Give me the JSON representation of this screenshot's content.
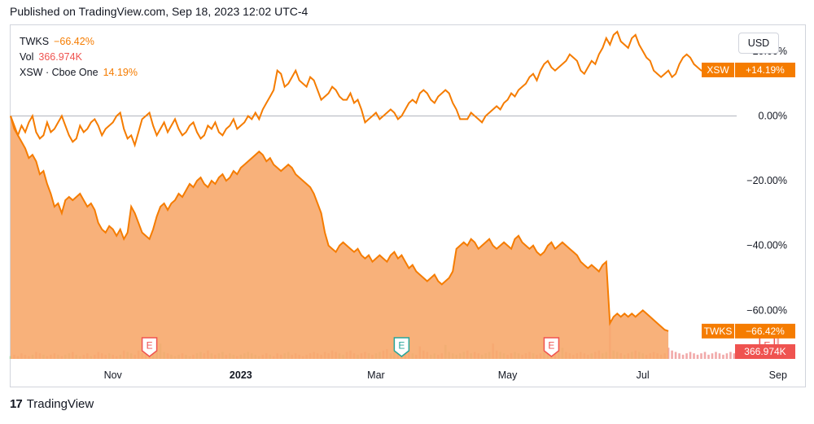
{
  "header": {
    "published": "Published on TradingView.com, Sep 18, 2023 12:02 UTC-4"
  },
  "legend": [
    {
      "symbol": "TWKS",
      "value": "−66.42%",
      "color": "#f57c00"
    },
    {
      "symbol": "Vol",
      "value": "366.974K",
      "color": "#ef5350"
    },
    {
      "symbol": "XSW · Cboe One",
      "value": "14.19%",
      "color": "#f57c00"
    }
  ],
  "currency": "USD",
  "footer": {
    "brand": "TradingView",
    "logo_icon": "tradingview-logo-icon"
  },
  "colors": {
    "line": "#f57c00",
    "area": "#f7a96b",
    "vol_red": "#ef9a9a",
    "vol_green": "#a5d6a7",
    "grid": "#e0e3eb",
    "label_red": "#ef5350"
  },
  "chart_data": {
    "type": "line",
    "yaxis": {
      "unit": "%",
      "ticks": [
        20,
        0,
        -20,
        -40,
        -60
      ],
      "tick_labels": [
        "20.00%",
        "0.00%",
        "−20.00%",
        "−40.00%",
        "−60.00%"
      ],
      "range": [
        -75,
        28
      ]
    },
    "xaxis": {
      "tick_labels": [
        "Nov",
        "2023",
        "Mar",
        "May",
        "Jul",
        "Sep"
      ],
      "tick_index": [
        28,
        63,
        100,
        136,
        173,
        210
      ]
    },
    "series": [
      {
        "name": "XSW",
        "label": "XSW",
        "last_label": "+14.19%",
        "last": 14.19,
        "values": [
          0,
          -4,
          -6,
          -3,
          -5,
          -2,
          0,
          -5,
          -7,
          -6,
          -2,
          -5,
          -4,
          -2,
          0,
          -3,
          -6,
          -8,
          -7,
          -3,
          -5,
          -4,
          -2,
          -1,
          -3,
          -6,
          -4,
          -3,
          -2,
          0,
          1,
          -4,
          -7,
          -6,
          -9,
          -5,
          -1,
          0,
          1,
          -3,
          -6,
          -4,
          -2,
          -5,
          -3,
          -1,
          -4,
          -6,
          -5,
          -3,
          -2,
          -5,
          -7,
          -6,
          -3,
          -4,
          -2,
          -5,
          -6,
          -4,
          -3,
          -1,
          -4,
          -3,
          -2,
          0,
          -1,
          1,
          -1,
          2,
          4,
          6,
          8,
          14,
          13,
          9,
          10,
          12,
          14,
          11,
          10,
          9,
          12,
          11,
          8,
          5,
          6,
          7,
          9,
          8,
          6,
          5,
          5,
          7,
          4,
          5,
          2,
          -2,
          -1,
          0,
          1,
          -1,
          0,
          1,
          2,
          1,
          -1,
          0,
          2,
          4,
          5,
          4,
          7,
          8,
          7,
          5,
          4,
          6,
          7,
          8,
          7,
          4,
          2,
          -1,
          -1,
          -1,
          1,
          0,
          -1,
          -2,
          0,
          1,
          2,
          3,
          2,
          4,
          5,
          7,
          6,
          8,
          9,
          10,
          12,
          13,
          11,
          14,
          16,
          17,
          15,
          14,
          15,
          16,
          17,
          19,
          18,
          17,
          14,
          13,
          15,
          17,
          16,
          19,
          21,
          24,
          22,
          25,
          26,
          23,
          22,
          21,
          24,
          25,
          22,
          20,
          18,
          17,
          14,
          13,
          12,
          13,
          14,
          12,
          13,
          16,
          18,
          19,
          18,
          16,
          15,
          14,
          14.19
        ]
      },
      {
        "name": "TWKS",
        "label": "TWKS",
        "last_label": "−66.42%",
        "last": -66.42,
        "values": [
          0,
          -3,
          -6,
          -8,
          -10,
          -13,
          -12,
          -14,
          -18,
          -17,
          -21,
          -24,
          -28,
          -27,
          -30,
          -26,
          -25,
          -26,
          -25,
          -24,
          -26,
          -28,
          -27,
          -29,
          -33,
          -35,
          -36,
          -34,
          -35,
          -37,
          -35,
          -38,
          -36,
          -28,
          -30,
          -33,
          -36,
          -37,
          -38,
          -35,
          -31,
          -28,
          -27,
          -29,
          -27,
          -26,
          -24,
          -25,
          -23,
          -21,
          -22,
          -20,
          -19,
          -21,
          -22,
          -20,
          -21,
          -19,
          -18,
          -20,
          -19,
          -17,
          -18,
          -16,
          -15,
          -14,
          -13,
          -12,
          -11,
          -12,
          -14,
          -13,
          -15,
          -16,
          -17,
          -16,
          -15,
          -16,
          -18,
          -19,
          -20,
          -21,
          -22,
          -24,
          -27,
          -30,
          -36,
          -40,
          -41,
          -42,
          -40,
          -39,
          -40,
          -41,
          -42,
          -41,
          -43,
          -44,
          -43,
          -45,
          -44,
          -43,
          -44,
          -45,
          -43,
          -42,
          -44,
          -43,
          -45,
          -47,
          -46,
          -48,
          -49,
          -50,
          -51,
          -50,
          -49,
          -51,
          -52,
          -51,
          -50,
          -48,
          -41,
          -40,
          -39,
          -40,
          -38,
          -39,
          -41,
          -40,
          -39,
          -38,
          -40,
          -41,
          -40,
          -39,
          -40,
          -41,
          -38,
          -37,
          -39,
          -40,
          -41,
          -40,
          -42,
          -43,
          -42,
          -40,
          -39,
          -41,
          -40,
          -39,
          -40,
          -41,
          -42,
          -43,
          -45,
          -46,
          -47,
          -46,
          -47,
          -48,
          -46,
          -45,
          -64,
          -62,
          -61,
          -62,
          -61,
          -62,
          -61,
          -62,
          -61,
          -60,
          -61,
          -62,
          -63,
          -64,
          -65,
          -66,
          -66.42
        ]
      }
    ],
    "volume": {
      "values": [
        2,
        3,
        2,
        4,
        3,
        2,
        3,
        5,
        4,
        3,
        2,
        3,
        4,
        3,
        2,
        3,
        4,
        5,
        3,
        2,
        3,
        4,
        2,
        3,
        5,
        4,
        3,
        4,
        3,
        2,
        3,
        6,
        5,
        4,
        3,
        6,
        4,
        3,
        4,
        5,
        6,
        11,
        5,
        4,
        3,
        2,
        3,
        4,
        3,
        2,
        3,
        4,
        5,
        4,
        6,
        4,
        3,
        4,
        5,
        3,
        4,
        3,
        2,
        3,
        4,
        5,
        4,
        3,
        2,
        3,
        4,
        3,
        2,
        4,
        3,
        4,
        5,
        3,
        4,
        3,
        2,
        3,
        4,
        5,
        4,
        3,
        5,
        4,
        6,
        5,
        4,
        3,
        5,
        6,
        4,
        3,
        4,
        5,
        4,
        3,
        4,
        5,
        6,
        7,
        4,
        5,
        6,
        4,
        5,
        6,
        4,
        3,
        9,
        6,
        5,
        3,
        4,
        3,
        4,
        10,
        5,
        4,
        3,
        4,
        5,
        6,
        4,
        5,
        4,
        3,
        4,
        5,
        11,
        6,
        5,
        4,
        3,
        4,
        5,
        4,
        3,
        4,
        5,
        4,
        3,
        4,
        5,
        4,
        3,
        4,
        6,
        8,
        5,
        4,
        3,
        4,
        5,
        4,
        3,
        4,
        5,
        6,
        4,
        5,
        28,
        6,
        5,
        4,
        3,
        4,
        5,
        6,
        5,
        4,
        3,
        4,
        5,
        4,
        3,
        4,
        8,
        6,
        5,
        4,
        3,
        4,
        5,
        4,
        3,
        4,
        5,
        3,
        4,
        5,
        4,
        3,
        4,
        5,
        4,
        3,
        4,
        5,
        6,
        4,
        3,
        5,
        4,
        3,
        4,
        5,
        20
      ],
      "last_label": "366.974K"
    },
    "earnings_markers": [
      {
        "index": 38,
        "label": "E",
        "color": "#ef5350"
      },
      {
        "index": 107,
        "label": "E",
        "color": "#26a69a"
      },
      {
        "index": 148,
        "label": "E",
        "color": "#ef5350"
      },
      {
        "index": 207,
        "label": "E",
        "color": "#ef5350"
      }
    ]
  }
}
